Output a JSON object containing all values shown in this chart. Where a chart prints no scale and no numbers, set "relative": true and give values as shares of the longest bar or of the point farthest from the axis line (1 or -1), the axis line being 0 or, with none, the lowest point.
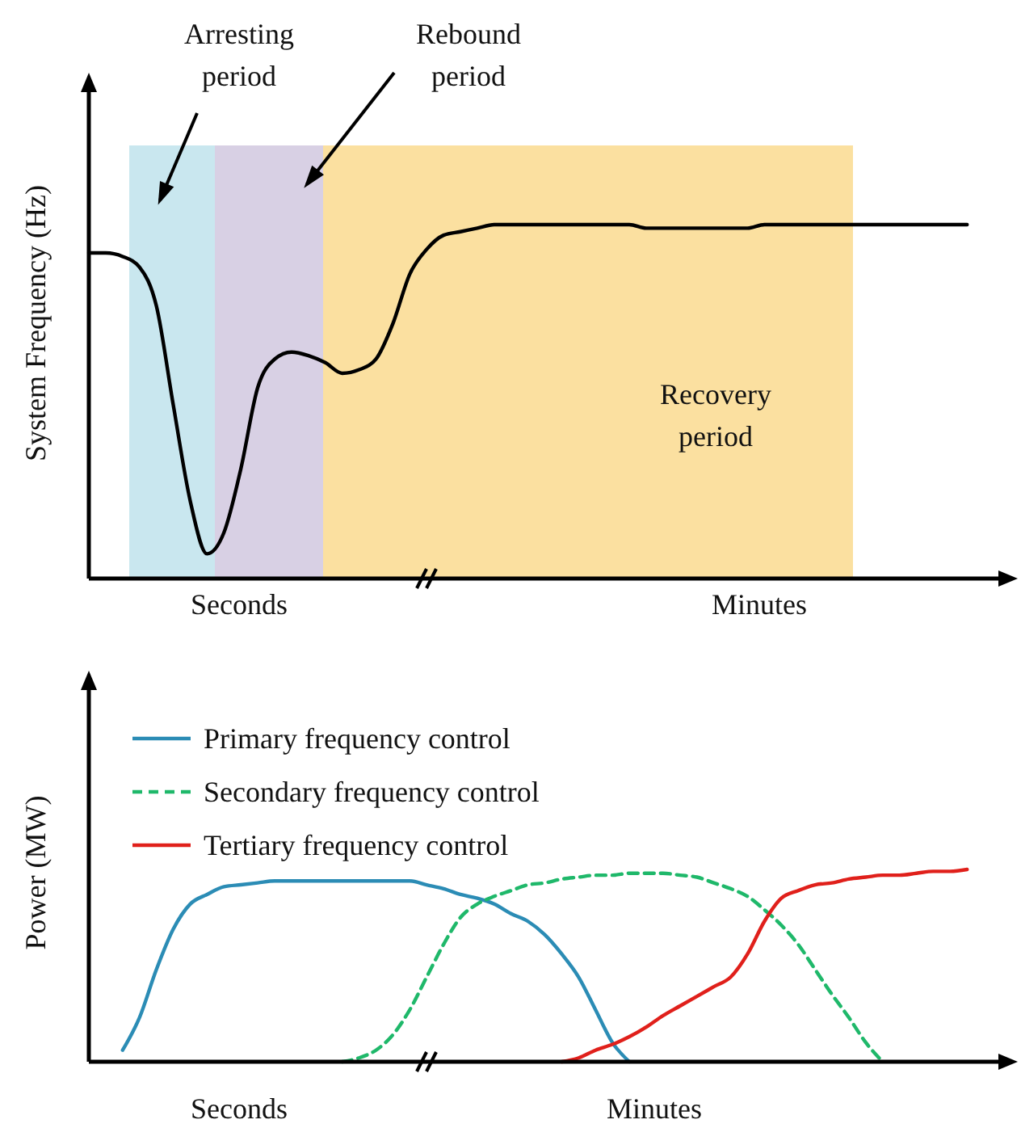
{
  "chart_data": [
    {
      "type": "line",
      "ylabel": "System Frequency (Hz)",
      "relative": true,
      "categories": [
        null,
        null,
        null,
        null,
        null,
        null,
        null,
        null,
        null,
        null,
        null,
        null,
        null,
        null,
        null,
        null,
        null,
        null,
        null,
        null,
        null,
        null,
        null,
        null,
        null,
        null,
        null,
        null,
        null,
        null,
        null,
        null,
        null,
        null,
        null,
        null,
        null,
        null,
        null,
        null,
        null,
        null,
        null,
        null,
        null,
        null,
        null,
        null,
        null,
        null,
        null,
        null,
        null,
        null,
        null,
        null
      ],
      "series": [
        {
          "color": "#000000",
          "values": [
            0.92,
            0.92,
            0.91,
            0.88,
            0.77,
            0.49,
            0.22,
            0.07,
            0.13,
            0.31,
            0.54,
            0.62,
            0.64,
            0.63,
            0.61,
            0.58,
            0.59,
            0.62,
            0.72,
            0.86,
            0.93,
            0.97,
            0.98,
            0.99,
            1.0,
            1.0,
            1.0,
            1.0,
            1.0,
            1.0,
            1.0,
            1.0,
            1.0,
            0.99,
            0.99,
            0.99,
            0.99,
            0.99,
            0.99,
            0.99,
            1.0,
            1.0,
            1.0,
            1.0,
            1.0,
            1.0,
            1.0,
            1.0,
            1.0,
            1.0,
            1.0,
            1.0,
            1.0,
            null,
            null,
            null
          ]
        }
      ],
      "annotations": [
        "Arresting period",
        "Rebound period",
        "Recovery period",
        "Seconds",
        "Minutes"
      ],
      "legend": false
    },
    {
      "type": "line",
      "ylabel": "Power (MW)",
      "relative": true,
      "categories": [
        null,
        null,
        null,
        null,
        null,
        null,
        null,
        null,
        null,
        null,
        null,
        null,
        null,
        null,
        null,
        null,
        null,
        null,
        null,
        null,
        null,
        null,
        null,
        null,
        null,
        null,
        null,
        null,
        null,
        null,
        null,
        null,
        null,
        null,
        null,
        null,
        null,
        null,
        null,
        null,
        null,
        null,
        null,
        null,
        null,
        null,
        null,
        null,
        null,
        null,
        null,
        null,
        null,
        null,
        null,
        null
      ],
      "series": [
        {
          "name": "Primary frequency control",
          "color": "#2b8cb5",
          "line_style": "solid",
          "values": [
            null,
            null,
            0.06,
            0.23,
            0.48,
            0.69,
            0.82,
            0.87,
            0.91,
            0.92,
            0.93,
            0.94,
            0.94,
            0.94,
            0.94,
            0.94,
            0.94,
            0.94,
            0.94,
            0.94,
            0.92,
            0.9,
            0.87,
            0.85,
            0.82,
            0.77,
            0.73,
            0.66,
            0.56,
            0.44,
            0.27,
            0.1,
            0.0,
            null,
            null,
            null,
            null,
            null,
            null,
            null,
            null,
            null,
            null,
            null,
            null,
            null,
            null,
            null,
            null,
            null,
            null,
            null,
            null,
            null,
            null,
            null
          ]
        },
        {
          "name": "Secondary frequency control",
          "color": "#1fb86a",
          "line_style": "dashed",
          "values": [
            null,
            null,
            null,
            null,
            null,
            null,
            null,
            null,
            null,
            null,
            null,
            null,
            null,
            null,
            null,
            0.0,
            0.02,
            0.06,
            0.14,
            0.27,
            0.44,
            0.61,
            0.75,
            0.82,
            0.86,
            0.89,
            0.92,
            0.93,
            0.95,
            0.96,
            0.97,
            0.97,
            0.98,
            0.98,
            0.98,
            0.97,
            0.96,
            0.93,
            0.9,
            0.86,
            0.79,
            0.71,
            0.61,
            0.48,
            0.35,
            0.23,
            0.1,
            0.0,
            null,
            null,
            null,
            null,
            null,
            null,
            null,
            null
          ]
        },
        {
          "name": "Tertiary frequency control",
          "color": "#e0201b",
          "line_style": "solid",
          "values": [
            null,
            null,
            null,
            null,
            null,
            null,
            null,
            null,
            null,
            null,
            null,
            null,
            null,
            null,
            null,
            null,
            null,
            null,
            null,
            null,
            null,
            null,
            null,
            null,
            null,
            null,
            null,
            null,
            0.0,
            0.02,
            0.06,
            0.09,
            0.13,
            0.18,
            0.24,
            0.29,
            0.34,
            0.39,
            0.44,
            0.56,
            0.73,
            0.85,
            0.89,
            0.92,
            0.93,
            0.95,
            0.96,
            0.97,
            0.97,
            0.98,
            0.99,
            0.99,
            1.0,
            null,
            null,
            null
          ]
        }
      ],
      "annotations": [
        "Seconds",
        "Minutes"
      ],
      "legend": "top left"
    }
  ]
}
